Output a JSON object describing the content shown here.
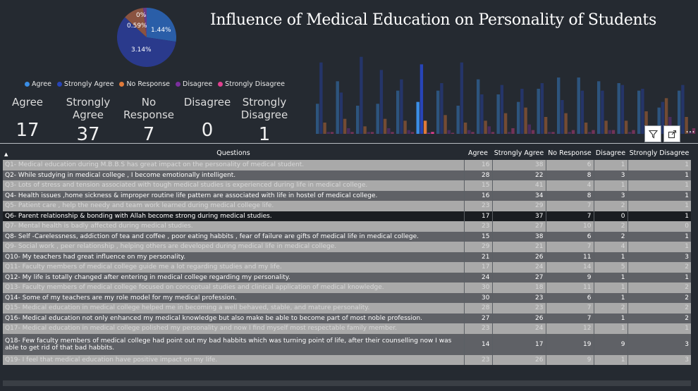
{
  "pie": {
    "slices": [
      {
        "name": "Agree",
        "value": 1.44,
        "label": "1.44%",
        "color": "#2a5ea8"
      },
      {
        "name": "Strongly Agree",
        "value": 3.14,
        "label": "3.14%",
        "color": "#2a3a8c"
      },
      {
        "name": "No Response",
        "value": 0.59,
        "label": "0.59%",
        "color": "#8a5340"
      },
      {
        "name": "Disagree",
        "value": 0.1,
        "label": "0%",
        "color": "#6a3a86"
      }
    ]
  },
  "title": "Influence of Medical Education on Personality of Students",
  "legend": [
    {
      "label": "Agree",
      "color": "#3a8ee6"
    },
    {
      "label": "Strongly Agree",
      "color": "#2744b8"
    },
    {
      "label": "No Response",
      "color": "#e07a3a"
    },
    {
      "label": "Disagree",
      "color": "#7b2f9e"
    },
    {
      "label": "Strongly Disagree",
      "color": "#e0408f"
    }
  ],
  "kpis": [
    {
      "label": "Agree",
      "value": "17"
    },
    {
      "label": "Strongly Agree",
      "value": "37"
    },
    {
      "label": "No Response",
      "value": "7"
    },
    {
      "label": "Disagree",
      "value": "0"
    },
    {
      "label": "Strongly Disagree",
      "value": "1"
    }
  ],
  "chart_data": {
    "type": "bar",
    "categories": [
      "Q1",
      "Q2",
      "Q3",
      "Q4",
      "Q5",
      "Q6",
      "Q7",
      "Q8",
      "Q9",
      "Q10",
      "Q11",
      "Q12",
      "Q13",
      "Q14",
      "Q15",
      "Q16",
      "Q17",
      "Q18",
      "Q19"
    ],
    "series": [
      {
        "name": "Agree",
        "values": [
          16,
          28,
          15,
          16,
          23,
          17,
          23,
          15,
          29,
          21,
          17,
          24,
          30,
          30,
          28,
          27,
          23,
          14,
          23
        ]
      },
      {
        "name": "Strongly Agree",
        "values": [
          38,
          22,
          41,
          34,
          29,
          37,
          27,
          38,
          21,
          26,
          24,
          27,
          18,
          23,
          23,
          26,
          24,
          17,
          26
        ]
      },
      {
        "name": "No Response",
        "values": [
          6,
          8,
          4,
          8,
          7,
          7,
          10,
          6,
          7,
          11,
          14,
          9,
          11,
          6,
          7,
          7,
          12,
          19,
          9
        ]
      },
      {
        "name": "Disagree",
        "values": [
          1,
          3,
          1,
          3,
          2,
          0,
          2,
          2,
          4,
          1,
          5,
          1,
          1,
          1,
          2,
          1,
          1,
          9,
          1
        ]
      },
      {
        "name": "Strongly Disagree",
        "values": [
          1,
          1,
          1,
          1,
          1,
          1,
          0,
          1,
          1,
          3,
          2,
          1,
          2,
          2,
          2,
          2,
          1,
          3,
          3
        ]
      }
    ]
  },
  "toolbar": {
    "filter_icon": "filter-icon",
    "focus_icon": "focus-mode-icon",
    "more": "···"
  },
  "table": {
    "headers": [
      "Questions",
      "Agree",
      "Strongly Agree",
      "No Response",
      "Disagree",
      "Strongly Disagree"
    ],
    "rows": [
      {
        "q": "Q1- Medical education during M.B.B.S has great impact on the personality of medical student.",
        "a": "16",
        "sa": "38",
        "nr": "6",
        "d": "1",
        "sd": "1",
        "style": "light"
      },
      {
        "q": "Q2- While studying in medical college , I become emotionally intelligent.",
        "a": "28",
        "sa": "22",
        "nr": "8",
        "d": "3",
        "sd": "1",
        "style": "dark"
      },
      {
        "q": "Q3- Lots of stress and tension associated with tough medical studies is experienced during life in medical college.",
        "a": "15",
        "sa": "41",
        "nr": "4",
        "d": "1",
        "sd": "1",
        "style": "light"
      },
      {
        "q": "Q4- Health issues ,home sickness & improper routine life pattern are associated with life in hostel of medical college.",
        "a": "16",
        "sa": "34",
        "nr": "8",
        "d": "3",
        "sd": "1",
        "style": "dark"
      },
      {
        "q": "Q5- Patient care , help the needy and team work learned during medical college life.",
        "a": "23",
        "sa": "29",
        "nr": "7",
        "d": "2",
        "sd": "1",
        "style": "light"
      },
      {
        "q": "Q6- Parent relationship & bonding with Allah become strong during medical studies.",
        "a": "17",
        "sa": "37",
        "nr": "7",
        "d": "0",
        "sd": "1",
        "style": "black"
      },
      {
        "q": "Q7- Mental health is badly affected during medical studies.",
        "a": "23",
        "sa": "27",
        "nr": "10",
        "d": "2",
        "sd": "0",
        "style": "light"
      },
      {
        "q": "Q8- Self -Carelessness, addiction of tea and coffee , poor eating habbits , fear of failure are gifts of medical life in medical college.",
        "a": "15",
        "sa": "38",
        "nr": "6",
        "d": "2",
        "sd": "1",
        "style": "dark"
      },
      {
        "q": "Q9- Social work , peer relationship , helping others are developed during medical life in medical college.",
        "a": "29",
        "sa": "21",
        "nr": "7",
        "d": "4",
        "sd": "1",
        "style": "light"
      },
      {
        "q": "Q10- My teachers had great influence on my personality.",
        "a": "21",
        "sa": "26",
        "nr": "11",
        "d": "1",
        "sd": "3",
        "style": "dark"
      },
      {
        "q": "Q11- Faculty members of medical college guide me a lot regarding studies and my life.",
        "a": "17",
        "sa": "24",
        "nr": "14",
        "d": "5",
        "sd": "2",
        "style": "light"
      },
      {
        "q": "Q12- My life is totally changed after entering in medical college regarding my personality.",
        "a": "24",
        "sa": "27",
        "nr": "9",
        "d": "1",
        "sd": "1",
        "style": "dark"
      },
      {
        "q": "Q13- Faculty members of medical college focused on conceptual studies and clinical application of medical knowledge.",
        "a": "30",
        "sa": "18",
        "nr": "11",
        "d": "1",
        "sd": "2",
        "style": "light"
      },
      {
        "q": "Q14- Some of my teachers are my role model for my medical profession.",
        "a": "30",
        "sa": "23",
        "nr": "6",
        "d": "1",
        "sd": "2",
        "style": "dark"
      },
      {
        "q": "Q15- Medical education in medical college helped me in becoming a well behaved, stable, and mature personality.",
        "a": "28",
        "sa": "23",
        "nr": "7",
        "d": "2",
        "sd": "2",
        "style": "light"
      },
      {
        "q": "Q16- Medical education not only enhanced my medical knowledge but also make be able to become part of most noble profession.",
        "a": "27",
        "sa": "26",
        "nr": "7",
        "d": "1",
        "sd": "2",
        "style": "dark"
      },
      {
        "q": "Q17- Medical education in medical college polished my personality and now I find myself most respectable family member.",
        "a": "23",
        "sa": "24",
        "nr": "12",
        "d": "1",
        "sd": "1",
        "style": "light"
      },
      {
        "q": "Q18- Few faculty members of medical college had point out my bad habbits which was turning point of life, after their counselling now I was able to get rid of that bad habbits.",
        "a": "14",
        "sa": "17",
        "nr": "19",
        "d": "9",
        "sd": "3",
        "style": "dark tall"
      },
      {
        "q": "Q19- I feel that medical education have positive impact on my life.",
        "a": "23",
        "sa": "26",
        "nr": "9",
        "d": "1",
        "sd": "3",
        "style": "light"
      }
    ]
  }
}
